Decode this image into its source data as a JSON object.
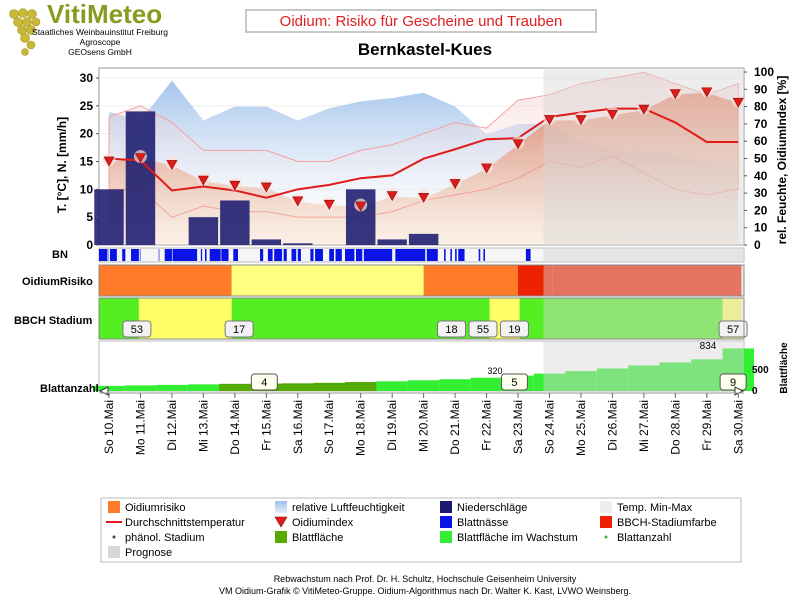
{
  "header": {
    "brand_title": "VitiMeteo",
    "brand_lines": [
      "Staatliches Weinbauinstitut Freiburg",
      "Agroscope",
      "GEOsens GmbH"
    ],
    "chart_title": "Oidium: Risiko für Gescheine und Trauben",
    "location": "Bernkastel-Kues"
  },
  "footer": {
    "line1": "Rebwachstum nach Prof. Dr. H. Schultz, Hochschule Geisenheim University",
    "line2": "VM Oidium-Grafik © VitiMeteo-Gruppe. Oidium-Algorithmus nach Dr. Walter K. Kast, LVWO Weinsberg."
  },
  "colors": {
    "risk_orange": "#ff7b2a",
    "risk_yellow": "#ffff80",
    "risk_red": "#ee2200",
    "humidity": "#a9c8ee",
    "precip": "#1a1a6e",
    "leaf_wet": "#0a14e6",
    "avg_temp": "#e11a1a",
    "leaf_area": "#55aa00",
    "leaf_growing": "#33ee33",
    "bbch_green": "#55ee22",
    "bbch_yellow": "#ffff66",
    "forecast": "#d8d8d8"
  },
  "chart_data": {
    "type": "line",
    "x": [
      "So 10.Mai",
      "Mo 11.Mai",
      "Di 12.Mai",
      "Mi 13.Mai",
      "Do 14.Mai",
      "Fr 15.Mai",
      "Sa 16.Mai",
      "So 17.Mai",
      "Mo 18.Mai",
      "Di 19.Mai",
      "Mi 20.Mai",
      "Do 21.Mai",
      "Fr 22.Mai",
      "Sa 23.Mai",
      "So 24.Mai",
      "Mo 25.Mai",
      "Di 26.Mai",
      "Mi 27.Mai",
      "Do 28.Mai",
      "Fr 29.Mai",
      "Sa 30.Mai"
    ],
    "forecast_from": "So 24.Mai",
    "ylabel_left": "T. [°C], N. [mm/h]",
    "ylabel_right": "rel. Feuchte, OidiumIndex [%]",
    "ylim_left": [
      0,
      30
    ],
    "ylim_right": [
      0,
      100
    ],
    "yticks_left": [
      0,
      5,
      10,
      15,
      20,
      25,
      30
    ],
    "yticks_right": [
      0,
      10,
      20,
      30,
      40,
      50,
      60,
      70,
      80,
      90,
      100
    ],
    "series": [
      {
        "name": "relative Luftfeuchtigkeit",
        "values": [
          77,
          72,
          95,
          72,
          80,
          80,
          72,
          79,
          83,
          85,
          88,
          80,
          64,
          70,
          70,
          60,
          55,
          52,
          52,
          48,
          45
        ]
      },
      {
        "name": "Durchschnittstemperatur",
        "values": [
          15.5,
          15.2,
          9.8,
          10.5,
          9.8,
          8.5,
          10.0,
          10.8,
          12.0,
          12.5,
          15.5,
          17.2,
          19.0,
          19.2,
          23.0,
          23.8,
          24.5,
          24.5,
          22.0,
          18.5,
          18.5
        ]
      },
      {
        "name": "Temp. Max",
        "values": [
          23,
          25,
          22,
          17,
          17,
          17,
          15,
          15,
          17,
          18,
          20,
          22,
          21,
          26,
          27,
          29,
          30,
          31,
          29,
          27,
          29
        ]
      },
      {
        "name": "Temp. Min",
        "values": [
          10,
          10,
          5,
          7,
          6,
          6,
          5,
          5,
          5,
          6,
          8,
          9,
          10,
          12,
          15,
          14,
          16,
          13,
          10,
          9,
          10
        ]
      },
      {
        "name": "Oidiumindex",
        "values": [
          48,
          50,
          46,
          37,
          34,
          33,
          25,
          23,
          22,
          28,
          27,
          35,
          44,
          58,
          72,
          72,
          75,
          78,
          87,
          88,
          82
        ]
      },
      {
        "name": "Niederschläge",
        "values": [
          10,
          24,
          0,
          5,
          8,
          1,
          0.3,
          0,
          10,
          1,
          2,
          0,
          0,
          0,
          0,
          0,
          0,
          0,
          0,
          0,
          0
        ]
      }
    ],
    "leaf_wetness": [
      [
        0.0,
        0.1
      ],
      [
        0.13,
        0.15
      ],
      [
        0.17,
        0.45
      ],
      [
        0.49,
        0.5
      ],
      [
        0.53,
        0.75
      ],
      [
        0.92,
        1.02
      ],
      [
        1.2,
        1.45
      ],
      [
        1.48,
        1.5
      ],
      [
        2.08,
        2.1
      ],
      [
        2.27,
        2.5
      ],
      [
        2.52,
        3.3
      ],
      [
        3.42,
        3.46
      ],
      [
        3.55,
        3.6
      ],
      [
        3.7,
        4.05
      ],
      [
        4.07,
        4.3
      ],
      [
        4.45,
        4.6
      ],
      [
        5.3,
        5.4
      ],
      [
        5.55,
        5.7
      ],
      [
        5.75,
        6.0
      ],
      [
        6.05,
        6.15
      ],
      [
        6.3,
        6.45
      ],
      [
        6.5,
        6.6
      ],
      [
        6.9,
        7.0
      ],
      [
        7.05,
        7.3
      ],
      [
        7.5,
        7.65
      ],
      [
        7.7,
        7.9
      ],
      [
        8.0,
        8.3
      ],
      [
        8.35,
        8.55
      ],
      [
        8.6,
        9.5
      ],
      [
        9.6,
        10.55
      ],
      [
        10.6,
        10.95
      ],
      [
        11.15,
        11.2
      ],
      [
        11.35,
        11.4
      ],
      [
        11.5,
        11.55
      ],
      [
        11.6,
        11.8
      ],
      [
        12.25,
        12.3
      ],
      [
        12.4,
        12.45
      ],
      [
        13.75,
        13.9
      ]
    ],
    "oidium_risk": [
      {
        "from": 0,
        "to": 4.4,
        "level": "orange"
      },
      {
        "from": 4.4,
        "to": 10.5,
        "level": "yellow"
      },
      {
        "from": 10.5,
        "to": 13.5,
        "level": "orange"
      },
      {
        "from": 13.5,
        "to": 14.6,
        "level": "red"
      },
      {
        "from": 14.6,
        "to": 20.6,
        "level": "red"
      }
    ],
    "bbch_bands": [
      {
        "from": 0,
        "to": 1.45,
        "level": "green"
      },
      {
        "from": 1.45,
        "to": 4.4,
        "level": "yellow"
      },
      {
        "from": 4.4,
        "to": 12.6,
        "level": "green"
      },
      {
        "from": 12.6,
        "to": 13.55,
        "level": "yellow"
      },
      {
        "from": 13.55,
        "to": 20.0,
        "level": "green"
      },
      {
        "from": 20.0,
        "to": 20.6,
        "level": "yellow"
      }
    ],
    "bbch_labels": [
      {
        "x": 0.95,
        "text": "53"
      },
      {
        "x": 4.2,
        "text": "17"
      },
      {
        "x": 10.95,
        "text": "18"
      },
      {
        "x": 11.95,
        "text": "55"
      },
      {
        "x": 12.95,
        "text": "19"
      },
      {
        "x": 19.9,
        "text": "57"
      }
    ],
    "leaf_area": [
      100,
      110,
      120,
      130,
      140,
      145,
      150,
      160,
      175,
      190,
      210,
      230,
      260,
      300,
      340,
      390,
      440,
      500,
      560,
      620,
      834
    ],
    "leaf_count_labels": [
      {
        "x": 5.0,
        "text": "4"
      },
      {
        "x": 12.95,
        "text": "5"
      },
      {
        "x": 19.9,
        "text": "9"
      }
    ],
    "leaf_area_max_label": "834",
    "leaf_area_hidden_label": "320",
    "leaf_area_tick": "500",
    "leaf_area_tick_zero": "0",
    "row_labels": {
      "bn": "BN",
      "risk": "OidiumRisiko",
      "bbch": "BBCH Stadium",
      "leaves": "Blattanzahl",
      "leaf_area": "Blattfläche"
    }
  },
  "legend": [
    {
      "label": "Oidiumrisiko",
      "kind": "square",
      "color": "#ff7b2a"
    },
    {
      "label": "relative Luftfeuchtigkeit",
      "kind": "gradient",
      "color": "#a9c8ee"
    },
    {
      "label": "Niederschläge",
      "kind": "square",
      "color": "#1a1a6e"
    },
    {
      "label": "Temp. Min-Max",
      "kind": "square",
      "color": "#eeeeee"
    },
    {
      "label": "Durchschnittstemperatur",
      "kind": "line",
      "color": "#e11a1a"
    },
    {
      "label": "Oidiumindex",
      "kind": "triangle",
      "color": "#e11a1a"
    },
    {
      "label": "Blattnässe",
      "kind": "square",
      "color": "#0a14e6"
    },
    {
      "label": "BBCH-Stadiumfarbe",
      "kind": "square",
      "color": "#ee2200"
    },
    {
      "label": "phänol. Stadium",
      "kind": "dot",
      "color": "#444444"
    },
    {
      "label": "Blattfläche",
      "kind": "square",
      "color": "#55aa00"
    },
    {
      "label": "Blattfläche im Wachstum",
      "kind": "square",
      "color": "#33ee33"
    },
    {
      "label": "Blattanzahl",
      "kind": "dot",
      "color": "#44aa44"
    },
    {
      "label": "Prognose",
      "kind": "square",
      "color": "#d8d8d8"
    }
  ]
}
